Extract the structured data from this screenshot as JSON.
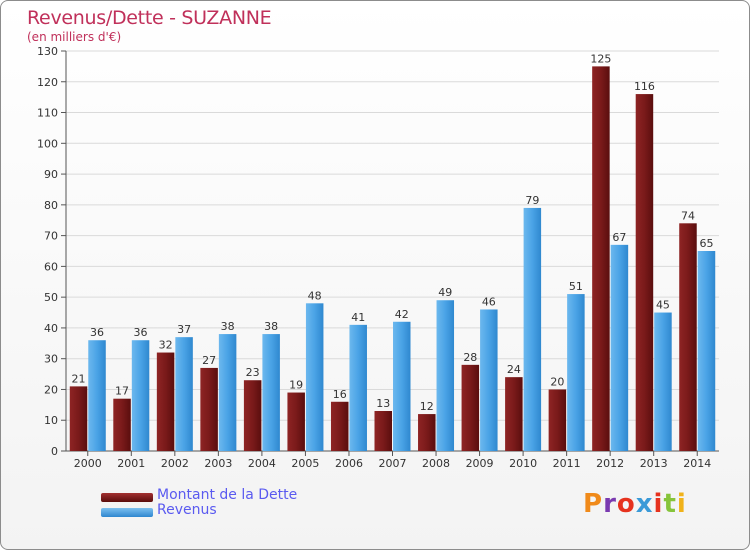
{
  "title": "Revenus/Dette - SUZANNE",
  "subtitle": "(en milliers d'€)",
  "colors": {
    "dette": "#7a1a1a",
    "revenus": "#4aa3e6",
    "title": "#c0305a",
    "legend_text": "#5a5af0"
  },
  "legend": [
    {
      "label": "Montant de la Dette",
      "color": "#7a1a1a"
    },
    {
      "label": "Revenus",
      "color": "#4aa3e6"
    }
  ],
  "logo": "Proxiti",
  "chart_data": {
    "type": "bar",
    "title": "Revenus/Dette - SUZANNE",
    "subtitle": "(en milliers d'€)",
    "categories": [
      "2000",
      "2001",
      "2002",
      "2003",
      "2004",
      "2005",
      "2006",
      "2007",
      "2008",
      "2009",
      "2010",
      "2011",
      "2012",
      "2013",
      "2014"
    ],
    "series": [
      {
        "name": "Montant de la Dette",
        "values": [
          21,
          17,
          32,
          27,
          23,
          19,
          16,
          13,
          12,
          28,
          24,
          20,
          125,
          116,
          74
        ]
      },
      {
        "name": "Revenus",
        "values": [
          36,
          36,
          37,
          38,
          38,
          48,
          41,
          42,
          49,
          46,
          79,
          51,
          67,
          45,
          65
        ]
      }
    ],
    "ylim": [
      0,
      130
    ],
    "yticks": [
      0,
      10,
      20,
      30,
      40,
      50,
      60,
      70,
      80,
      90,
      100,
      110,
      120,
      130
    ],
    "grid": true,
    "legend_position": "bottom-left"
  }
}
